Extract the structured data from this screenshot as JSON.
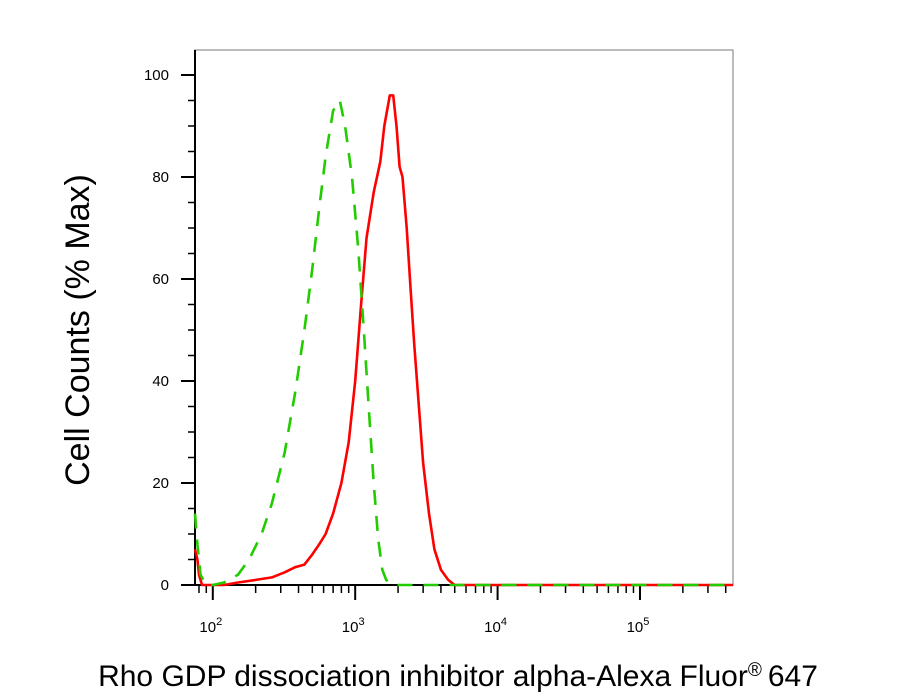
{
  "chart_data": {
    "type": "line",
    "title": "",
    "xlabel": "Rho GDP dissociation inhibitor alpha-Alexa Fluor",
    "xlabel_mark": "®",
    "xlabel_suffix": "647",
    "ylabel": "Cell Counts (% Max)",
    "xscale": "log",
    "xlim": [
      75,
      450000
    ],
    "ylim": [
      0,
      100
    ],
    "yticks": [
      0,
      20,
      40,
      60,
      80,
      100
    ],
    "xticks": [
      {
        "value": 100,
        "base": "10",
        "exp": "2"
      },
      {
        "value": 1000,
        "base": "10",
        "exp": "3"
      },
      {
        "value": 10000,
        "base": "10",
        "exp": "4"
      },
      {
        "value": 100000,
        "base": "10",
        "exp": "5"
      }
    ],
    "grid": false,
    "legend": "none",
    "series": [
      {
        "color": "#ff0000",
        "style": "solid",
        "x": [
          75,
          78,
          80,
          84,
          90,
          100,
          120,
          150,
          200,
          260,
          320,
          380,
          440,
          500,
          560,
          620,
          700,
          800,
          900,
          1000,
          1100,
          1200,
          1350,
          1500,
          1600,
          1750,
          1850,
          1950,
          2050,
          2150,
          2300,
          2450,
          2600,
          2800,
          3000,
          3300,
          3600,
          4000,
          4500,
          5000,
          5500,
          6000,
          8000,
          20000,
          100000,
          450000
        ],
        "y": [
          7,
          5,
          2,
          0,
          0,
          0,
          0,
          0.5,
          1,
          1.5,
          2.5,
          3.5,
          4,
          6,
          8,
          10,
          14,
          20,
          28,
          40,
          55,
          68,
          77,
          83,
          90,
          96,
          96,
          90,
          82,
          80,
          70,
          58,
          47,
          35,
          24,
          14,
          7,
          3,
          1,
          0,
          0,
          0,
          0,
          0,
          0,
          0
        ]
      },
      {
        "color": "#22cc00",
        "style": "dashed",
        "x": [
          75,
          78,
          82,
          90,
          100,
          120,
          150,
          180,
          220,
          260,
          320,
          380,
          440,
          500,
          560,
          620,
          700,
          780,
          850,
          950,
          1050,
          1150,
          1250,
          1350,
          1450,
          1550,
          1650,
          1750,
          1850,
          2000,
          2200,
          2500,
          3000,
          5000,
          20000,
          100000,
          450000
        ],
        "y": [
          14,
          8,
          2,
          0,
          0,
          0.5,
          2,
          5,
          10,
          16,
          26,
          38,
          50,
          62,
          74,
          84,
          93,
          95,
          90,
          80,
          66,
          50,
          34,
          20,
          9,
          3,
          1,
          0.5,
          0,
          0,
          0,
          0,
          0,
          0,
          0,
          0,
          0
        ]
      }
    ]
  }
}
